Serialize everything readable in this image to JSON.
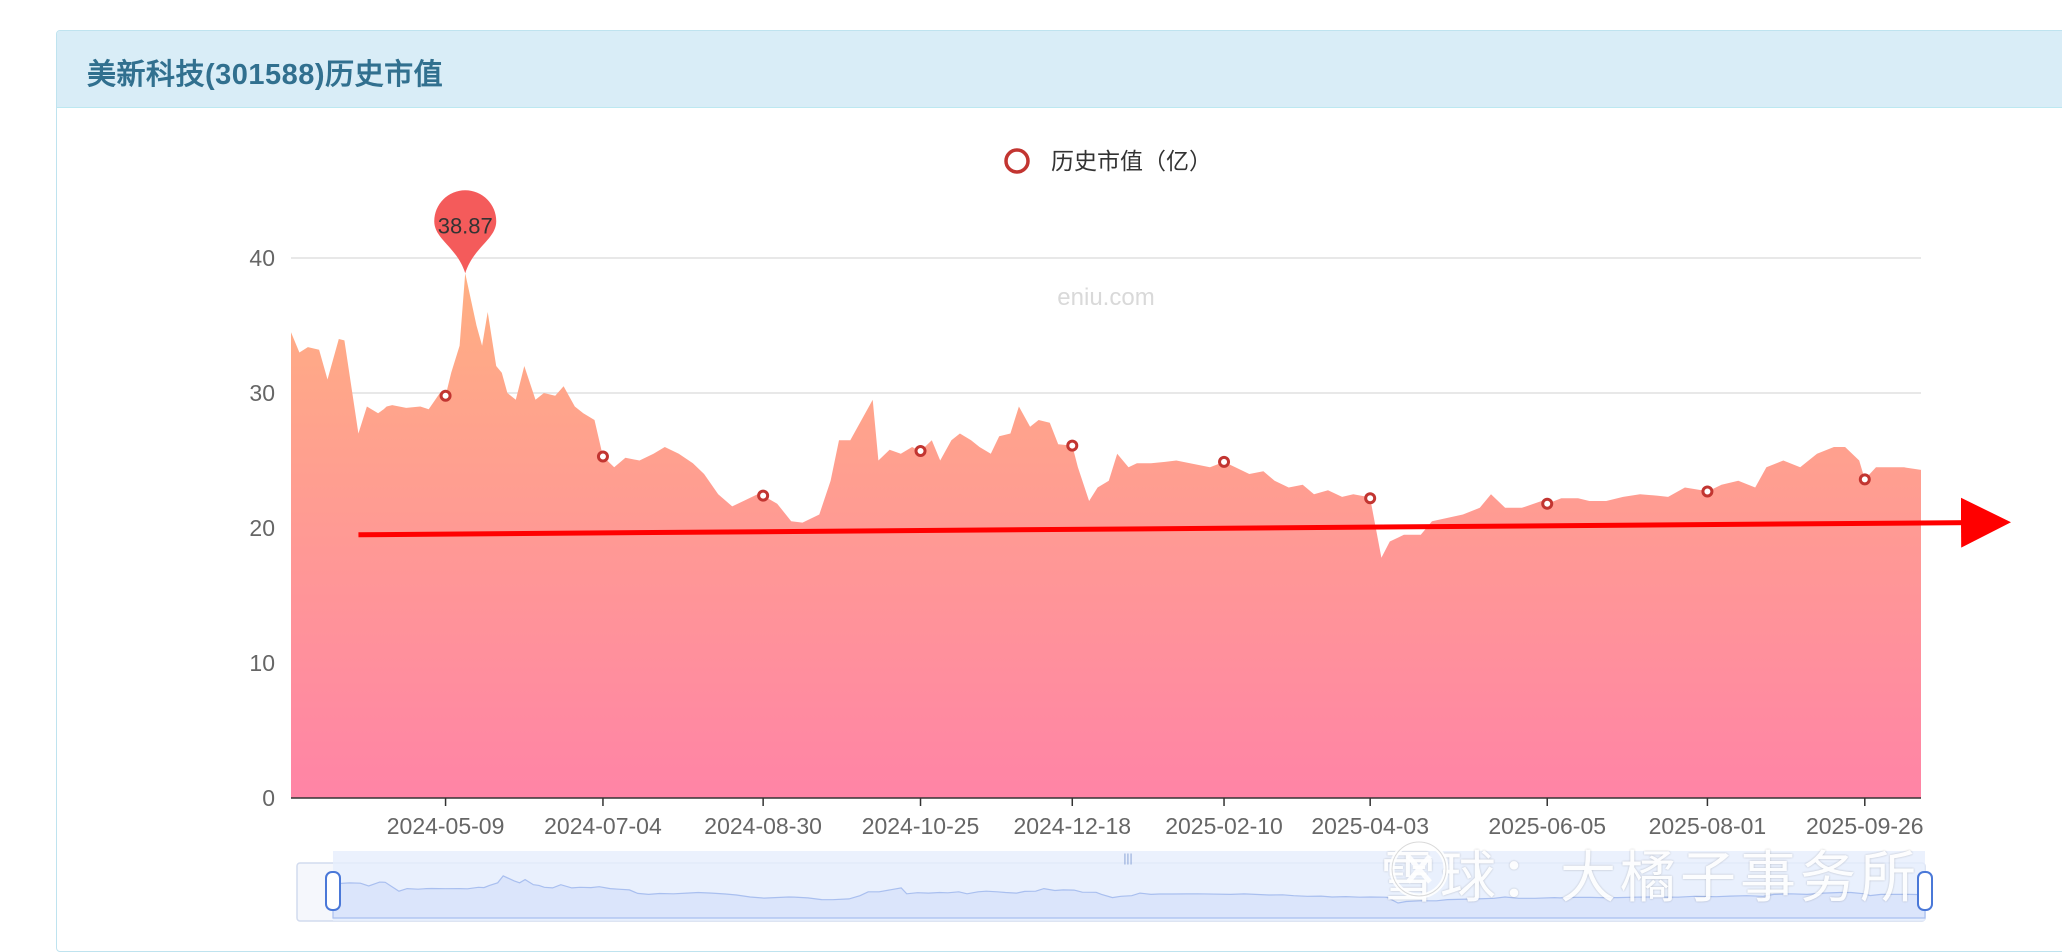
{
  "panel": {
    "title": "美新科技(301588)历史市值"
  },
  "watermark": {
    "text": "雪球：大橘子事务所"
  },
  "chart_data": {
    "type": "area",
    "legend": {
      "label": "历史市值（亿）",
      "position": "top-center"
    },
    "site_mark": "eniu.com",
    "ylim": [
      0,
      40
    ],
    "yticks": [
      0,
      10,
      20,
      30,
      40
    ],
    "grid": true,
    "x_start": "2024-03-15",
    "x_end": "2025-10-16",
    "xticks": [
      "2024-05-09",
      "2024-07-04",
      "2024-08-30",
      "2024-10-25",
      "2024-12-18",
      "2025-02-10",
      "2025-04-03",
      "2025-06-05",
      "2025-08-01",
      "2025-09-26"
    ],
    "series": [
      {
        "name": "历史市值（亿）",
        "x": [
          "2024-03-15",
          "2024-03-18",
          "2024-03-21",
          "2024-03-25",
          "2024-03-28",
          "2024-04-01",
          "2024-04-03",
          "2024-04-08",
          "2024-04-11",
          "2024-04-15",
          "2024-04-17",
          "2024-04-18",
          "2024-04-20",
          "2024-04-25",
          "2024-04-30",
          "2024-05-03",
          "2024-05-07",
          "2024-05-09",
          "2024-05-11",
          "2024-05-14",
          "2024-05-16",
          "2024-05-20",
          "2024-05-22",
          "2024-05-24",
          "2024-05-27",
          "2024-05-29",
          "2024-05-31",
          "2024-06-03",
          "2024-06-06",
          "2024-06-10",
          "2024-06-13",
          "2024-06-17",
          "2024-06-20",
          "2024-06-24",
          "2024-06-27",
          "2024-07-01",
          "2024-07-04",
          "2024-07-08",
          "2024-07-12",
          "2024-07-17",
          "2024-07-22",
          "2024-07-26",
          "2024-07-31",
          "2024-08-05",
          "2024-08-09",
          "2024-08-14",
          "2024-08-19",
          "2024-08-23",
          "2024-08-28",
          "2024-08-30",
          "2024-09-04",
          "2024-09-09",
          "2024-09-13",
          "2024-09-19",
          "2024-09-23",
          "2024-09-26",
          "2024-09-30",
          "2024-10-08",
          "2024-10-10",
          "2024-10-14",
          "2024-10-18",
          "2024-10-22",
          "2024-10-25",
          "2024-10-29",
          "2024-11-01",
          "2024-11-05",
          "2024-11-08",
          "2024-11-12",
          "2024-11-15",
          "2024-11-19",
          "2024-11-22",
          "2024-11-26",
          "2024-11-29",
          "2024-12-03",
          "2024-12-06",
          "2024-12-10",
          "2024-12-13",
          "2024-12-18",
          "2024-12-20",
          "2024-12-24",
          "2024-12-27",
          "2024-12-31",
          "2025-01-03",
          "2025-01-07",
          "2025-01-10",
          "2025-01-15",
          "2025-01-20",
          "2025-01-24",
          "2025-02-05",
          "2025-02-10",
          "2025-02-14",
          "2025-02-19",
          "2025-02-24",
          "2025-02-28",
          "2025-03-05",
          "2025-03-10",
          "2025-03-14",
          "2025-03-19",
          "2025-03-24",
          "2025-03-28",
          "2025-04-02",
          "2025-04-03",
          "2025-04-07",
          "2025-04-10",
          "2025-04-15",
          "2025-04-21",
          "2025-04-25",
          "2025-05-06",
          "2025-05-12",
          "2025-05-16",
          "2025-05-21",
          "2025-05-27",
          "2025-06-03",
          "2025-06-05",
          "2025-06-10",
          "2025-06-16",
          "2025-06-20",
          "2025-06-26",
          "2025-07-02",
          "2025-07-08",
          "2025-07-14",
          "2025-07-18",
          "2025-07-24",
          "2025-07-30",
          "2025-08-01",
          "2025-08-06",
          "2025-08-12",
          "2025-08-18",
          "2025-08-22",
          "2025-08-28",
          "2025-09-03",
          "2025-09-09",
          "2025-09-15",
          "2025-09-19",
          "2025-09-24",
          "2025-09-26",
          "2025-09-30",
          "2025-10-10",
          "2025-10-16"
        ],
        "values": [
          34.5,
          33.0,
          33.4,
          33.2,
          31.0,
          34.0,
          33.9,
          27.0,
          29.0,
          28.5,
          28.8,
          29.0,
          29.1,
          28.9,
          29.0,
          28.8,
          30.0,
          29.8,
          31.5,
          33.5,
          38.87,
          35.0,
          33.5,
          36.0,
          32.0,
          31.5,
          30.0,
          29.5,
          32.0,
          29.5,
          30.0,
          29.8,
          30.5,
          29.0,
          28.5,
          28.0,
          25.3,
          24.5,
          25.2,
          25.0,
          25.5,
          26.0,
          25.5,
          24.8,
          24.0,
          22.5,
          21.6,
          22.0,
          22.5,
          22.4,
          21.8,
          20.5,
          20.4,
          21.0,
          23.5,
          26.5,
          26.5,
          29.5,
          25.0,
          25.8,
          25.5,
          26.0,
          25.7,
          26.5,
          25.0,
          26.5,
          27.0,
          26.5,
          26.0,
          25.5,
          26.8,
          27.0,
          29.0,
          27.5,
          28.0,
          27.8,
          26.2,
          26.1,
          24.5,
          22.0,
          23.0,
          23.5,
          25.5,
          24.5,
          24.8,
          24.8,
          24.9,
          25.0,
          24.5,
          24.9,
          24.5,
          24.0,
          24.2,
          23.5,
          23.0,
          23.2,
          22.5,
          22.8,
          22.3,
          22.5,
          22.3,
          22.2,
          17.8,
          19.0,
          19.5,
          19.5,
          20.5,
          21.0,
          21.5,
          22.5,
          21.5,
          21.5,
          22.0,
          21.8,
          22.2,
          22.2,
          22.0,
          22.0,
          22.3,
          22.5,
          22.4,
          22.3,
          23.0,
          22.8,
          22.7,
          23.2,
          23.5,
          23.0,
          24.5,
          25.0,
          24.5,
          25.5,
          26.0,
          26.0,
          25.0,
          23.6,
          24.5,
          24.5,
          24.3
        ]
      }
    ],
    "markers": [
      {
        "x": "2024-05-09",
        "y": 29.8
      },
      {
        "x": "2024-07-04",
        "y": 25.3
      },
      {
        "x": "2024-08-30",
        "y": 22.4
      },
      {
        "x": "2024-10-25",
        "y": 25.7
      },
      {
        "x": "2024-12-18",
        "y": 26.1
      },
      {
        "x": "2025-02-10",
        "y": 24.9
      },
      {
        "x": "2025-04-03",
        "y": 22.2
      },
      {
        "x": "2025-06-05",
        "y": 21.8
      },
      {
        "x": "2025-08-01",
        "y": 22.7
      },
      {
        "x": "2025-09-26",
        "y": 23.6
      }
    ],
    "max_point": {
      "x": "2024-05-16",
      "value": 38.87
    },
    "trend_arrow": {
      "from": [
        "2024-04-08",
        19.5
      ],
      "to": [
        "2025-10-16",
        19.9
      ]
    },
    "colors": {
      "area_top": "#ffaf82",
      "area_bottom": "#ff84a6",
      "marker": "#c23531",
      "legend": "#c23531",
      "max_pin": "#f45b5b",
      "arrow": "#ff0000",
      "grid": "#e0e0e0",
      "axis_text": "#666666",
      "slider_fill": "#dbe5fb",
      "slider_handle": "#4a78d8"
    }
  }
}
